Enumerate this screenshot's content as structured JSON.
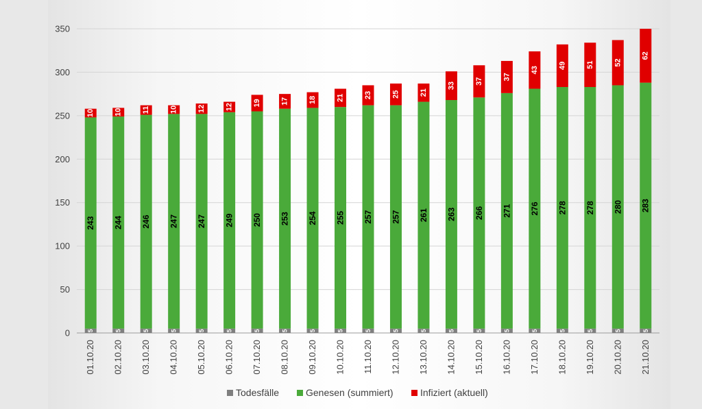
{
  "chart_data": {
    "type": "bar",
    "stacked": true,
    "orientation": "vertical",
    "categories": [
      "01.10.20",
      "02.10.20",
      "03.10.20",
      "04.10.20",
      "05.10.20",
      "06.10.20",
      "07.10.20",
      "08.10.20",
      "09.10.20",
      "10.10.20",
      "11.10.20",
      "12.10.20",
      "13.10.20",
      "14.10.20",
      "15.10.20",
      "16.10.20",
      "17.10.20",
      "18.10.20",
      "19.10.20",
      "20.10.20",
      "21.10.20"
    ],
    "series": [
      {
        "name": "Todesfälle",
        "color": "#7f7f7f",
        "values": [
          5,
          5,
          5,
          5,
          5,
          5,
          5,
          5,
          5,
          5,
          5,
          5,
          5,
          5,
          5,
          5,
          5,
          5,
          5,
          5,
          5
        ]
      },
      {
        "name": "Genesen (summiert)",
        "color": "#4aaa3a",
        "values": [
          243,
          244,
          246,
          247,
          247,
          249,
          250,
          253,
          254,
          255,
          257,
          257,
          261,
          263,
          266,
          271,
          276,
          278,
          278,
          280,
          283
        ]
      },
      {
        "name": "Infiziert (aktuell)",
        "color": "#e00000",
        "values": [
          10,
          10,
          11,
          10,
          12,
          12,
          19,
          17,
          18,
          21,
          23,
          25,
          21,
          33,
          37,
          37,
          43,
          49,
          51,
          52,
          62
        ]
      }
    ],
    "ylim": [
      0,
      350
    ],
    "yticks": [
      0,
      50,
      100,
      150,
      200,
      250,
      300,
      350
    ],
    "grid": true,
    "legend_position": "bottom",
    "title": "",
    "xlabel": "",
    "ylabel": ""
  }
}
